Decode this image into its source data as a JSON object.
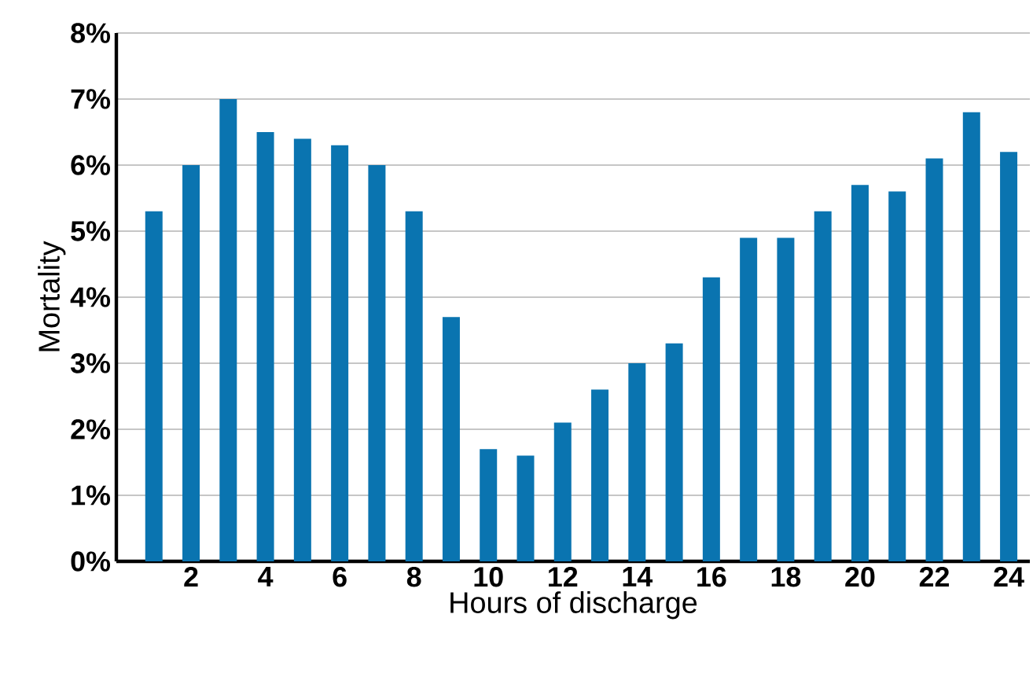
{
  "chart_data": {
    "type": "bar",
    "xlabel": "Hours of discharge",
    "ylabel": "Mortality",
    "categories": [
      null,
      "2",
      null,
      "4",
      null,
      "6",
      null,
      "8",
      null,
      "10",
      null,
      "12",
      null,
      "14",
      null,
      "16",
      null,
      "18",
      null,
      "20",
      null,
      "22",
      null,
      "24"
    ],
    "values": [
      5.3,
      6.0,
      7.0,
      6.5,
      6.4,
      6.3,
      6.0,
      5.3,
      3.7,
      1.7,
      1.6,
      2.1,
      2.6,
      3.0,
      3.3,
      4.3,
      4.9,
      4.9,
      5.3,
      5.7,
      5.6,
      6.1,
      6.8,
      6.2
    ],
    "color": "#0a74b0",
    "ylim": [
      0,
      8
    ],
    "yticks": [
      {
        "value": 0,
        "label": "0%"
      },
      {
        "value": 1,
        "label": "1%"
      },
      {
        "value": 2,
        "label": "2%"
      },
      {
        "value": 3,
        "label": "3%"
      },
      {
        "value": 4,
        "label": "4%"
      },
      {
        "value": 5,
        "label": "5%"
      },
      {
        "value": 6,
        "label": "6%"
      },
      {
        "value": 7,
        "label": "7%"
      },
      {
        "value": 8,
        "label": "8%"
      }
    ],
    "grid": "y"
  }
}
